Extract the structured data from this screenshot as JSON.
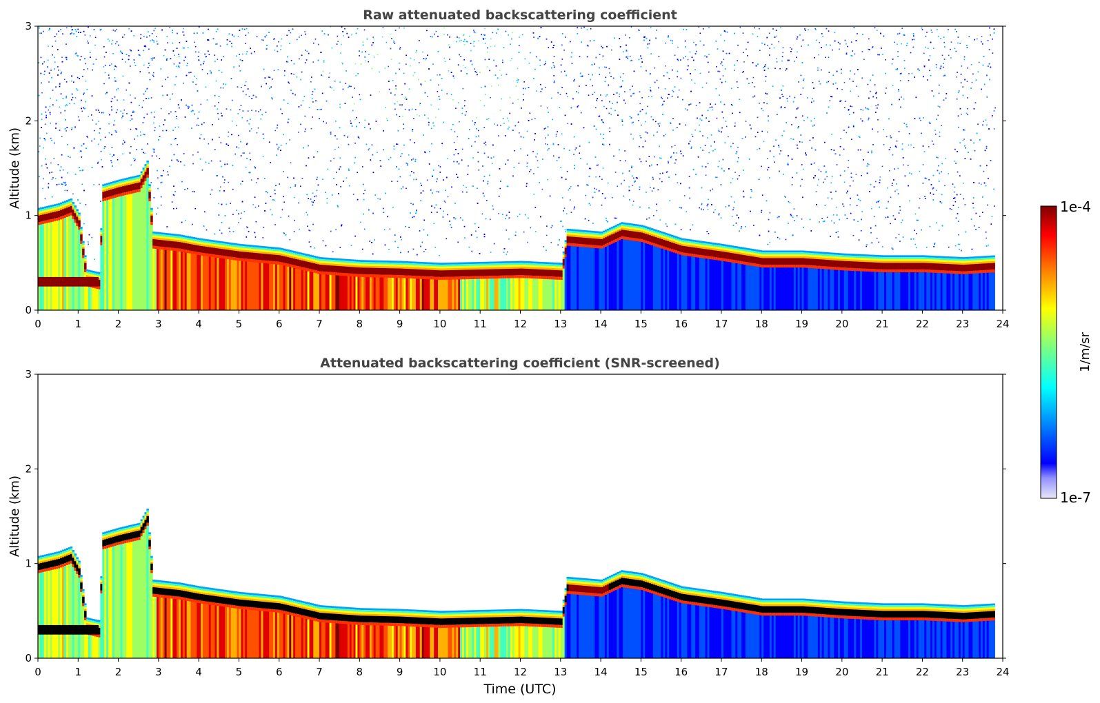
{
  "chart_data": [
    {
      "type": "heatmap",
      "title": "Raw attenuated backscattering coefficient",
      "xlabel": "",
      "ylabel": "Altitude (km)",
      "xlim": [
        0,
        24
      ],
      "ylim": [
        0,
        3
      ],
      "x_ticks": [
        "0",
        "1",
        "2",
        "3",
        "4",
        "5",
        "6",
        "7",
        "8",
        "9",
        "10",
        "11",
        "12",
        "13",
        "14",
        "15",
        "16",
        "17",
        "18",
        "19",
        "20",
        "21",
        "22",
        "23",
        "24"
      ],
      "y_ticks": [
        "0",
        "1",
        "2",
        "3"
      ],
      "screened": false
    },
    {
      "type": "heatmap",
      "title": "Attenuated backscattering coefficient (SNR-screened)",
      "xlabel": "Time (UTC)",
      "ylabel": "Altitude (km)",
      "xlim": [
        0,
        24
      ],
      "ylim": [
        0,
        3
      ],
      "x_ticks": [
        "0",
        "1",
        "2",
        "3",
        "4",
        "5",
        "6",
        "7",
        "8",
        "9",
        "10",
        "11",
        "12",
        "13",
        "14",
        "15",
        "16",
        "17",
        "18",
        "19",
        "20",
        "21",
        "22",
        "23",
        "24"
      ],
      "y_ticks": [
        "0",
        "1",
        "2",
        "3"
      ],
      "screened": true
    }
  ],
  "colorbar": {
    "label": "1/m/sr",
    "max_label": "1e-4",
    "min_label": "1e-7",
    "scale": "log",
    "colormap": "jet",
    "colors": [
      "#e8e8f8",
      "#0000ff",
      "#00b4ff",
      "#00ffff",
      "#7fff7f",
      "#ffff00",
      "#ff7f00",
      "#ff0000",
      "#800000"
    ]
  },
  "cloud_layer": [
    [
      0.0,
      1.0
    ],
    [
      0.5,
      1.05
    ],
    [
      0.8,
      1.1
    ],
    [
      1.0,
      0.95
    ],
    [
      1.2,
      0.35
    ],
    [
      1.5,
      0.32
    ],
    [
      1.6,
      1.25
    ],
    [
      2.0,
      1.3
    ],
    [
      2.5,
      1.35
    ],
    [
      2.7,
      1.5
    ],
    [
      2.85,
      0.75
    ],
    [
      3.5,
      0.72
    ],
    [
      4.0,
      0.68
    ],
    [
      5.0,
      0.62
    ],
    [
      6.0,
      0.58
    ],
    [
      7.0,
      0.48
    ],
    [
      8.0,
      0.45
    ],
    [
      9.0,
      0.44
    ],
    [
      10.0,
      0.42
    ],
    [
      11.0,
      0.43
    ],
    [
      12.0,
      0.44
    ],
    [
      13.0,
      0.42
    ],
    [
      13.15,
      0.78
    ],
    [
      14.0,
      0.75
    ],
    [
      14.5,
      0.85
    ],
    [
      15.0,
      0.82
    ],
    [
      16.0,
      0.68
    ],
    [
      17.0,
      0.62
    ],
    [
      18.0,
      0.55
    ],
    [
      19.0,
      0.55
    ],
    [
      20.0,
      0.52
    ],
    [
      21.0,
      0.5
    ],
    [
      22.0,
      0.5
    ],
    [
      23.0,
      0.48
    ],
    [
      23.8,
      0.5
    ]
  ],
  "data_end_time": 23.8
}
